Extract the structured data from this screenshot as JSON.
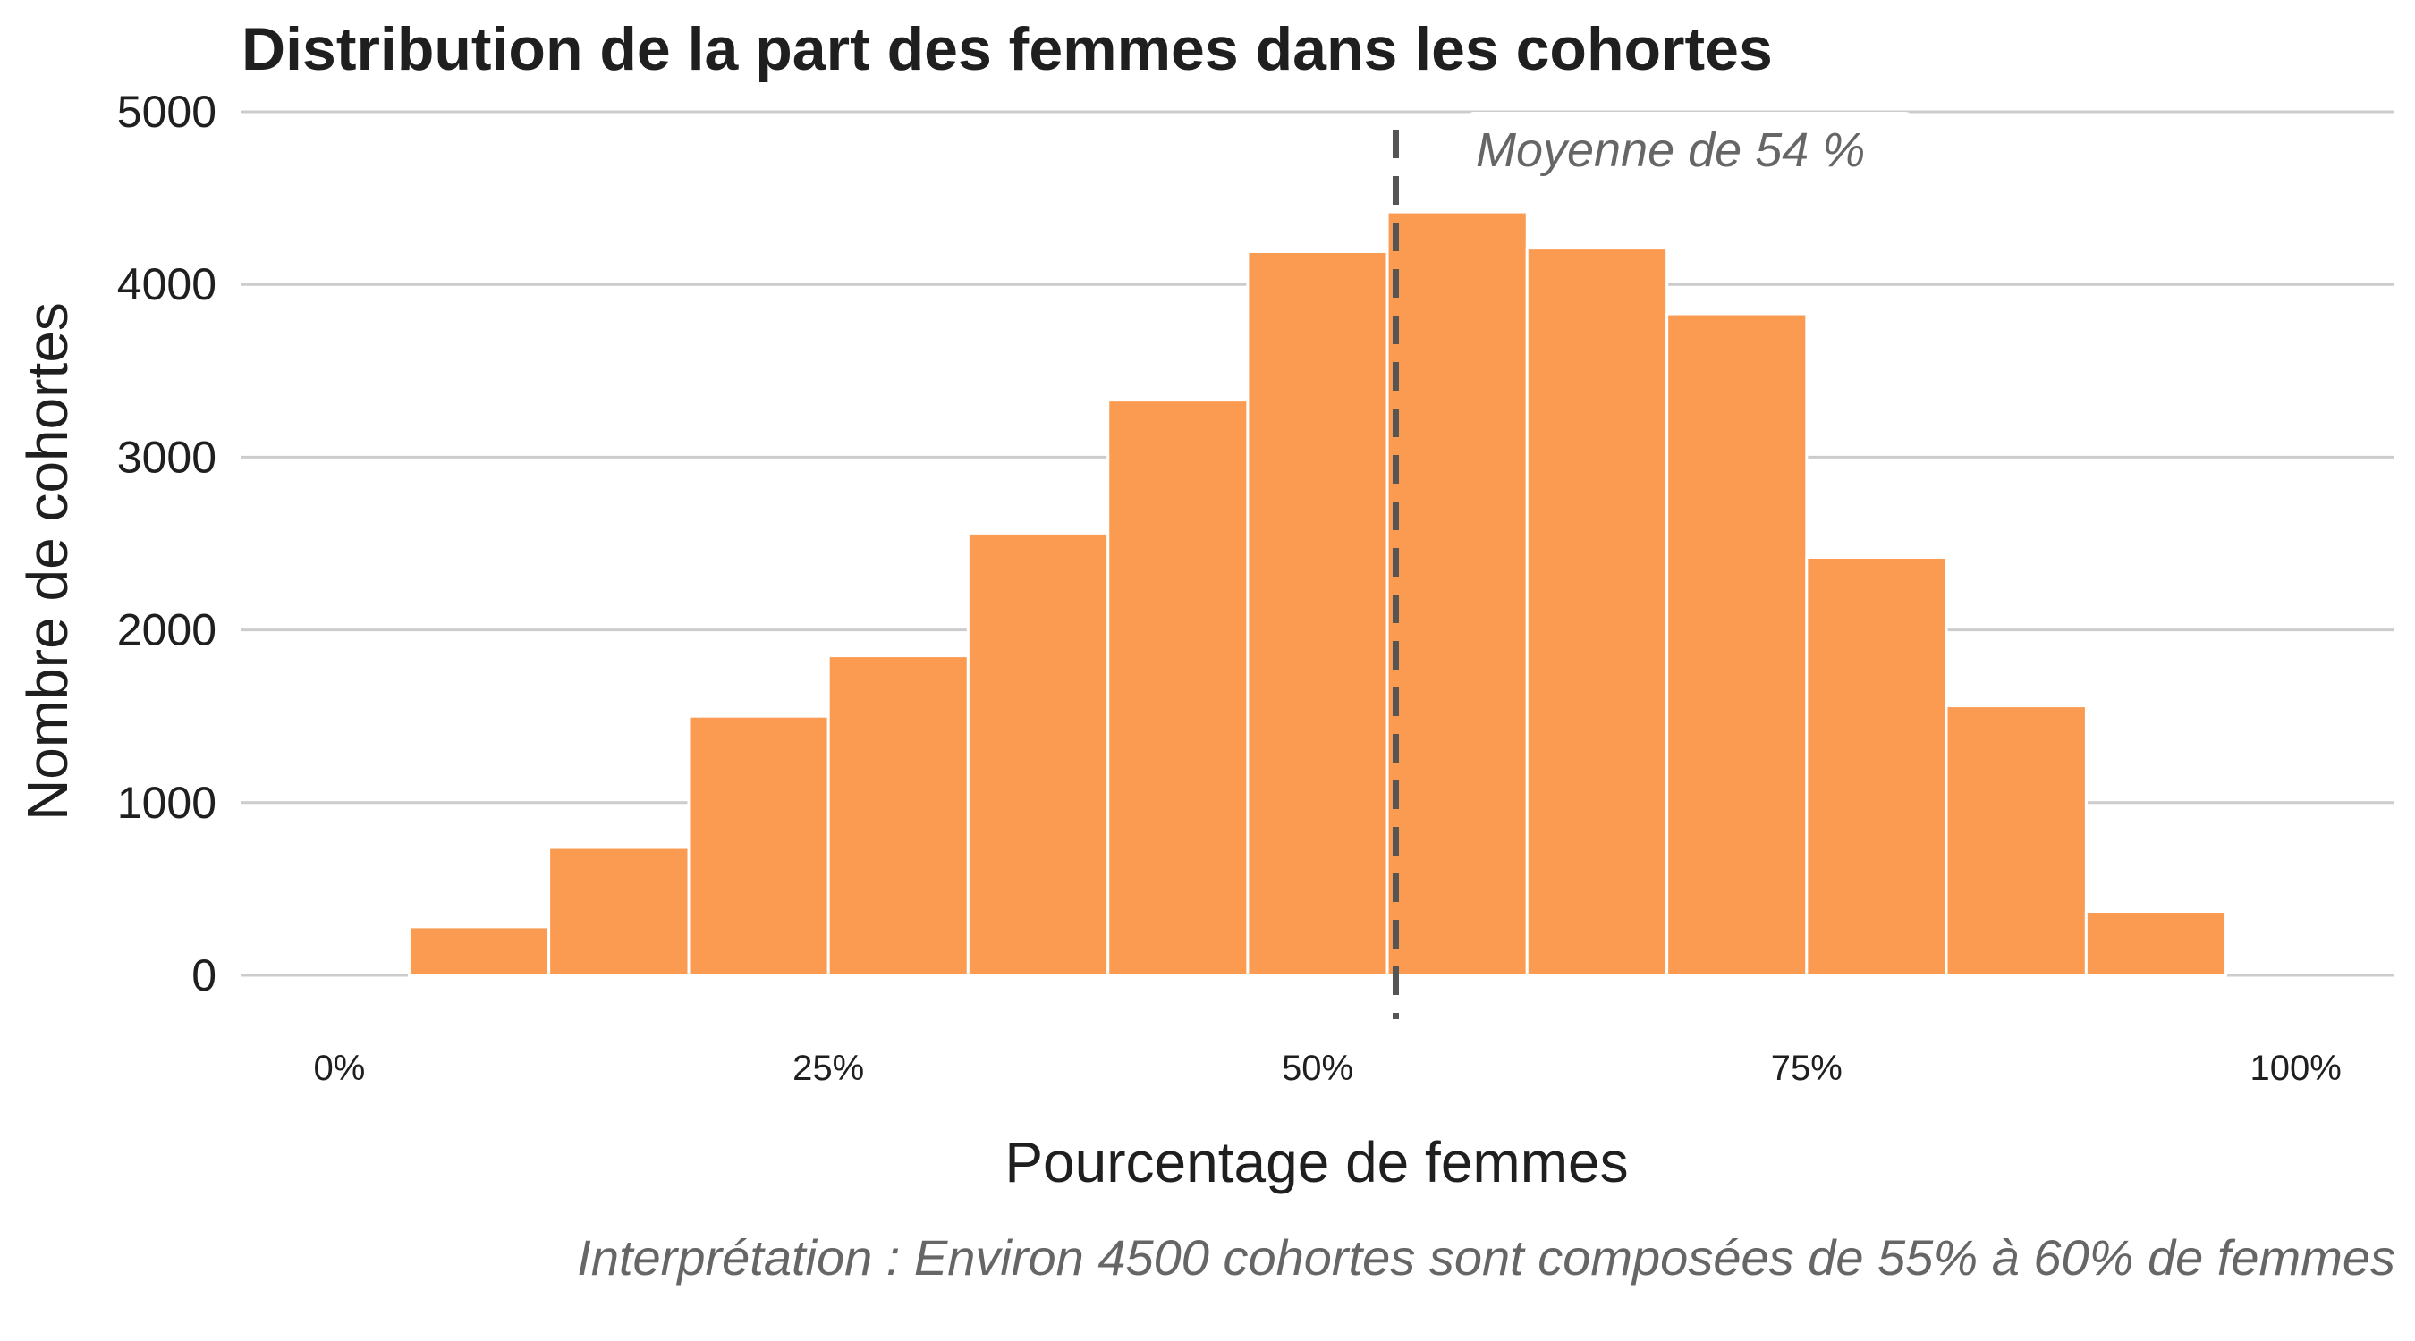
{
  "chart_data": {
    "type": "histogram",
    "title": "Distribution de la part des femmes dans les cohortes",
    "xlabel": "Pourcentage de femmes",
    "ylabel": "Nombre de cohortes",
    "caption": "Interprétation : Environ 4500 cohortes sont composées de 55% à 60% de femmes",
    "xlim": [
      -5,
      105
    ],
    "ylim": [
      0,
      5000
    ],
    "xticks": [
      0,
      25,
      50,
      75,
      100
    ],
    "xtick_labels": [
      "0%",
      "25%",
      "50%",
      "75%",
      "100%"
    ],
    "yticks": [
      0,
      1000,
      2000,
      3000,
      4000,
      5000
    ],
    "ytick_labels": [
      "0",
      "1000",
      "2000",
      "3000",
      "4000",
      "5000"
    ],
    "grid": "horizontal",
    "bin_width": 7.14,
    "bins": [
      {
        "x_start": -3.57,
        "x_end": 3.57,
        "count": 0
      },
      {
        "x_start": 3.57,
        "x_end": 10.71,
        "count": 280
      },
      {
        "x_start": 10.71,
        "x_end": 17.86,
        "count": 740
      },
      {
        "x_start": 17.86,
        "x_end": 25.0,
        "count": 1500
      },
      {
        "x_start": 25.0,
        "x_end": 32.14,
        "count": 1850
      },
      {
        "x_start": 32.14,
        "x_end": 39.29,
        "count": 2560
      },
      {
        "x_start": 39.29,
        "x_end": 46.43,
        "count": 3330
      },
      {
        "x_start": 46.43,
        "x_end": 53.57,
        "count": 4190
      },
      {
        "x_start": 53.57,
        "x_end": 60.71,
        "count": 4420
      },
      {
        "x_start": 60.71,
        "x_end": 67.86,
        "count": 4210
      },
      {
        "x_start": 67.86,
        "x_end": 75.0,
        "count": 3830
      },
      {
        "x_start": 75.0,
        "x_end": 82.14,
        "count": 2420
      },
      {
        "x_start": 82.14,
        "x_end": 89.29,
        "count": 1560
      },
      {
        "x_start": 89.29,
        "x_end": 96.43,
        "count": 370
      },
      {
        "x_start": 96.43,
        "x_end": 103.57,
        "count": 0
      }
    ],
    "mean_line": {
      "x": 54,
      "label": "Moyenne de 54 %",
      "color": "#555555",
      "style": "dashed"
    },
    "colors": {
      "bar": "#fb9a51",
      "gridline": "#cccccc",
      "mean_line": "#555555"
    }
  }
}
